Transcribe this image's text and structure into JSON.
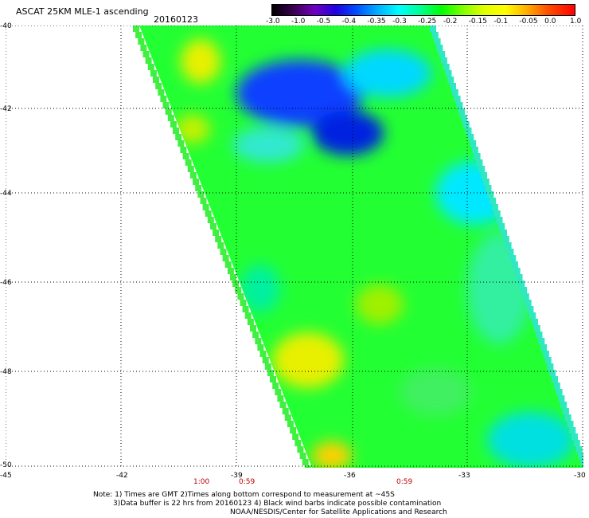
{
  "header": {
    "title": "ASCAT 25KM MLE-1 ascending",
    "date": "20160123"
  },
  "colorbar": {
    "ticks": [
      "-3.0",
      "-1.0",
      "-0.5",
      "-0.4",
      "-0.35",
      "-0.3",
      "-0.25",
      "-0.2",
      "-0.15",
      "-0.1",
      "-0.05",
      "0.0",
      "1.0"
    ]
  },
  "axes": {
    "lat_labels": [
      "-40",
      "-42",
      "-44",
      "-46",
      "-48",
      "-50"
    ],
    "lon_labels": [
      "-45",
      "-42",
      "-39",
      "-36",
      "-33",
      "-30"
    ]
  },
  "time_labels": [
    "1:00",
    "0:59",
    "0:59"
  ],
  "notes": {
    "line1": "Note: 1) Times are GMT 2)Times along bottom correspond to measurement at ~45S",
    "line2": "3)Data buffer is 22 hrs from 20160123 4) Black wind barbs indicate possible contamination",
    "line3": "NOAA/NESDIS/Center for Satellite Applications and Research"
  }
}
